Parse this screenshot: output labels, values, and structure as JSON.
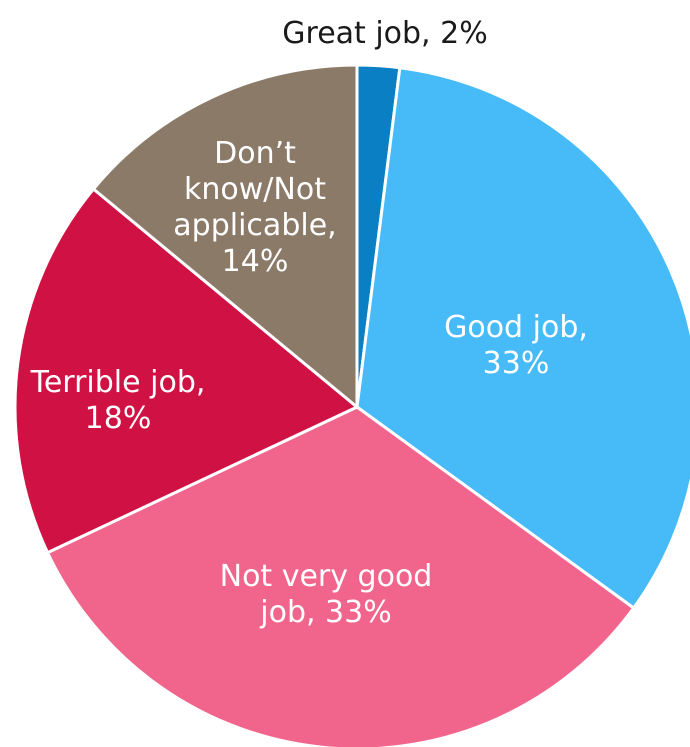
{
  "chart_data": {
    "type": "pie",
    "title": "",
    "slices": [
      {
        "name": "Great job",
        "value": 2,
        "color": "#0a7fc4",
        "label_lines": [
          "Great job, 2%"
        ],
        "label_color": "#1a1a1a"
      },
      {
        "name": "Good job",
        "value": 33,
        "color": "#47bbf7",
        "label_lines": [
          "Good job,",
          "33%"
        ],
        "label_color": "#ffffff"
      },
      {
        "name": "Not very good job",
        "value": 33,
        "color": "#f1658c",
        "label_lines": [
          "Not very good",
          "job, 33%"
        ],
        "label_color": "#ffffff"
      },
      {
        "name": "Terrible job",
        "value": 18,
        "color": "#d01143",
        "label_lines": [
          "Terrible job,",
          "18%"
        ],
        "label_color": "#ffffff"
      },
      {
        "name": "Don't know/Not applicable",
        "value": 14,
        "color": "#8c7a69",
        "label_lines": [
          "Don’t",
          "know/Not",
          "applicable,",
          "14%"
        ],
        "label_color": "#ffffff"
      }
    ],
    "start_angle": "12 o'clock",
    "direction": "clockwise",
    "legend": "none"
  }
}
